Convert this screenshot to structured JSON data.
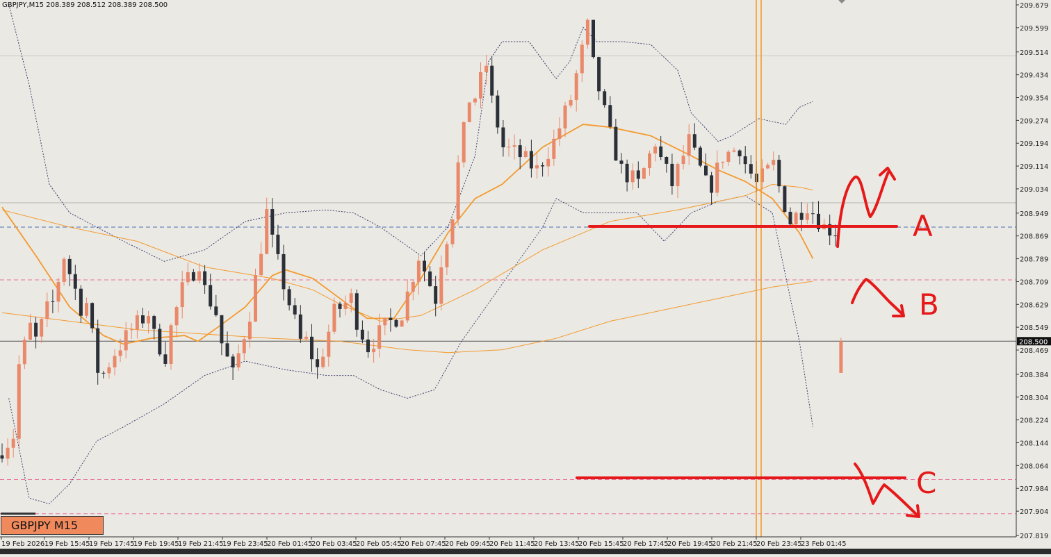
{
  "header": {
    "info": "GBPJPY,M15  208.389 208.512 208.389 208.500"
  },
  "symbol_label": "GBPJPY M15",
  "current_price_label": "208.500",
  "colors": {
    "background": "#ebe9e4",
    "bull_candle": "#e9896a",
    "bear_candle": "#2b3038",
    "ma_line": "#f39a2e",
    "bollinger": "#3a3f6e",
    "annotation": "#e51919",
    "vertical_marker": "#f39a2e",
    "blue_level": "#4a6fb3",
    "pink_level": "#e8739a"
  },
  "annotations": {
    "a": "A",
    "b": "B",
    "c": "C"
  },
  "chart_data": {
    "type": "candlestick",
    "symbol": "GBPJPY",
    "timeframe": "M15",
    "ylim": [
      207.819,
      209.679
    ],
    "y_ticks": [
      "209.679",
      "209.599",
      "209.514",
      "209.434",
      "209.354",
      "209.274",
      "209.194",
      "209.114",
      "209.034",
      "208.949",
      "208.869",
      "208.789",
      "208.709",
      "208.629",
      "208.549",
      "208.469",
      "208.384",
      "208.304",
      "208.224",
      "208.144",
      "208.064",
      "207.984",
      "207.904",
      "207.819"
    ],
    "x_ticks": [
      "19 Feb 2026",
      "19 Feb 15:45",
      "19 Feb 17:45",
      "19 Feb 19:45",
      "19 Feb 21:45",
      "19 Feb 23:45",
      "20 Feb 01:45",
      "20 Feb 03:45",
      "20 Feb 05:45",
      "20 Feb 07:45",
      "20 Feb 09:45",
      "20 Feb 11:45",
      "20 Feb 13:45",
      "20 Feb 15:45",
      "20 Feb 17:45",
      "20 Feb 19:45",
      "20 Feb 21:45",
      "20 Feb 23:45",
      "23 Feb 01:45"
    ],
    "last_price": 208.5,
    "levels": [
      {
        "name": "blue-dashed",
        "value": 208.9
      },
      {
        "name": "pink-dashed-upper",
        "value": 208.715
      },
      {
        "name": "solid-current",
        "value": 208.5
      },
      {
        "name": "pink-dashed-lower",
        "value": 208.015
      },
      {
        "name": "pink-dashed-bottom",
        "value": 207.895
      },
      {
        "name": "grey-upper",
        "value": 209.5
      },
      {
        "name": "grey-mid",
        "value": 208.985
      }
    ],
    "trend": [
      [
        208.1,
        208.17
      ],
      [
        208.35,
        208.55
      ],
      [
        208.45,
        208.61
      ],
      [
        208.55,
        208.8
      ],
      [
        208.8,
        208.62
      ],
      [
        208.75,
        208.4
      ],
      [
        208.35,
        208.46
      ],
      [
        208.46,
        208.54
      ],
      [
        208.54,
        208.6
      ],
      [
        208.55,
        208.45
      ],
      [
        208.48,
        208.68
      ],
      [
        208.68,
        208.78
      ],
      [
        208.72,
        208.6
      ],
      [
        208.55,
        208.38
      ],
      [
        208.38,
        208.6
      ],
      [
        208.6,
        208.95
      ],
      [
        208.92,
        208.7
      ],
      [
        208.7,
        208.5
      ],
      [
        208.55,
        208.4
      ],
      [
        208.4,
        208.6
      ],
      [
        208.6,
        208.65
      ],
      [
        208.62,
        208.48
      ],
      [
        208.48,
        208.55
      ],
      [
        208.55,
        208.6
      ],
      [
        208.6,
        208.8
      ],
      [
        208.8,
        208.65
      ],
      [
        208.7,
        208.95
      ],
      [
        209.0,
        209.35
      ],
      [
        209.3,
        209.47
      ],
      [
        209.42,
        209.18
      ],
      [
        209.18,
        209.15
      ],
      [
        209.15,
        209.1
      ],
      [
        209.1,
        209.2
      ],
      [
        209.2,
        209.35
      ],
      [
        209.35,
        209.6
      ],
      [
        209.55,
        209.3
      ],
      [
        209.28,
        209.1
      ],
      [
        209.1,
        209.05
      ],
      [
        209.05,
        209.2
      ],
      [
        209.18,
        209.05
      ],
      [
        209.05,
        209.2
      ],
      [
        209.2,
        209.05
      ],
      [
        209.0,
        209.15
      ],
      [
        209.15,
        209.18
      ],
      [
        209.16,
        209.05
      ],
      [
        209.05,
        209.12
      ],
      [
        209.1,
        208.92
      ],
      [
        208.92,
        208.98
      ],
      [
        208.98,
        208.9
      ],
      [
        208.9,
        208.88
      ],
      [
        208.88,
        208.65
      ],
      [
        208.62,
        208.35
      ],
      [
        208.35,
        208.22
      ],
      [
        208.22,
        208.4
      ],
      [
        208.4,
        208.5
      ]
    ],
    "ma_fast": [
      [
        0,
        208.97
      ],
      [
        5,
        208.8
      ],
      [
        10,
        208.62
      ],
      [
        15,
        208.52
      ],
      [
        18,
        208.49
      ],
      [
        22,
        208.51
      ],
      [
        27,
        208.52
      ],
      [
        29,
        208.5
      ],
      [
        32,
        208.55
      ],
      [
        36,
        208.62
      ],
      [
        40,
        208.73
      ],
      [
        42,
        208.75
      ],
      [
        46,
        208.72
      ],
      [
        50,
        208.65
      ],
      [
        54,
        208.58
      ],
      [
        58,
        208.58
      ],
      [
        62,
        208.72
      ],
      [
        66,
        208.88
      ],
      [
        70,
        209.0
      ],
      [
        74,
        209.05
      ],
      [
        80,
        209.18
      ],
      [
        86,
        209.26
      ],
      [
        90,
        209.25
      ],
      [
        96,
        209.22
      ],
      [
        102,
        209.15
      ],
      [
        106,
        209.1
      ],
      [
        110,
        209.06
      ],
      [
        114,
        209.0
      ],
      [
        118,
        208.88
      ],
      [
        120,
        208.79
      ]
    ],
    "ma_slow": [
      [
        0,
        208.96
      ],
      [
        10,
        208.9
      ],
      [
        20,
        208.85
      ],
      [
        30,
        208.76
      ],
      [
        40,
        208.72
      ],
      [
        46,
        208.68
      ],
      [
        50,
        208.63
      ],
      [
        56,
        208.57
      ],
      [
        62,
        208.59
      ],
      [
        70,
        208.68
      ],
      [
        80,
        208.82
      ],
      [
        90,
        208.92
      ],
      [
        100,
        208.96
      ],
      [
        106,
        208.99
      ],
      [
        110,
        209.01
      ],
      [
        114,
        209.05
      ],
      [
        118,
        209.04
      ],
      [
        120,
        209.03
      ]
    ],
    "ma_long": [
      [
        0,
        208.6
      ],
      [
        20,
        208.54
      ],
      [
        40,
        208.51
      ],
      [
        50,
        208.5
      ],
      [
        60,
        208.47
      ],
      [
        66,
        208.46
      ],
      [
        74,
        208.47
      ],
      [
        82,
        208.51
      ],
      [
        90,
        208.57
      ],
      [
        100,
        208.62
      ],
      [
        108,
        208.66
      ],
      [
        114,
        208.69
      ],
      [
        120,
        208.71
      ]
    ],
    "bb_upper": [
      [
        1,
        209.68
      ],
      [
        4,
        209.4
      ],
      [
        7,
        209.05
      ],
      [
        10,
        208.95
      ],
      [
        14,
        208.9
      ],
      [
        18,
        208.85
      ],
      [
        24,
        208.78
      ],
      [
        30,
        208.82
      ],
      [
        36,
        208.92
      ],
      [
        42,
        208.95
      ],
      [
        48,
        208.96
      ],
      [
        52,
        208.95
      ],
      [
        56,
        208.9
      ],
      [
        62,
        208.8
      ],
      [
        66,
        208.9
      ],
      [
        70,
        209.15
      ],
      [
        72,
        209.48
      ],
      [
        74,
        209.55
      ],
      [
        78,
        209.55
      ],
      [
        82,
        209.42
      ],
      [
        84,
        209.48
      ],
      [
        86,
        209.6
      ],
      [
        88,
        209.55
      ],
      [
        92,
        209.55
      ],
      [
        96,
        209.54
      ],
      [
        100,
        209.45
      ],
      [
        102,
        209.3
      ],
      [
        106,
        209.2
      ],
      [
        108,
        209.22
      ],
      [
        112,
        209.28
      ],
      [
        116,
        209.26
      ],
      [
        118,
        209.32
      ],
      [
        120,
        209.34
      ]
    ],
    "bb_lower": [
      [
        1,
        208.3
      ],
      [
        4,
        207.95
      ],
      [
        7,
        207.93
      ],
      [
        10,
        208.0
      ],
      [
        14,
        208.15
      ],
      [
        18,
        208.2
      ],
      [
        24,
        208.28
      ],
      [
        30,
        208.38
      ],
      [
        36,
        208.43
      ],
      [
        42,
        208.4
      ],
      [
        48,
        208.38
      ],
      [
        52,
        208.38
      ],
      [
        56,
        208.33
      ],
      [
        60,
        208.3
      ],
      [
        64,
        208.33
      ],
      [
        68,
        208.5
      ],
      [
        74,
        208.7
      ],
      [
        80,
        208.9
      ],
      [
        82,
        209.0
      ],
      [
        86,
        208.95
      ],
      [
        90,
        208.95
      ],
      [
        94,
        208.95
      ],
      [
        98,
        208.85
      ],
      [
        102,
        208.95
      ],
      [
        106,
        208.99
      ],
      [
        110,
        209.01
      ],
      [
        114,
        208.95
      ],
      [
        118,
        208.5
      ],
      [
        120,
        208.2
      ]
    ]
  }
}
